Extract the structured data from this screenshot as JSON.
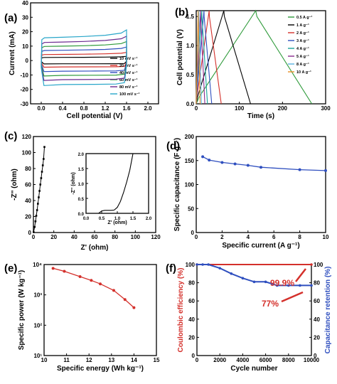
{
  "chart_data": [
    {
      "panel": "(a)",
      "type": "line",
      "xlabel": "Cell potential (V)",
      "ylabel": "Current (mA)",
      "xlim": [
        -0.2,
        2.2
      ],
      "ylim": [
        -30,
        40
      ],
      "xticks": [
        "0.0",
        "0.4",
        "0.8",
        "1.2",
        "1.6",
        "2.0"
      ],
      "yticks": [
        "-30",
        "-20",
        "-10",
        "0",
        "10",
        "20",
        "30",
        "40"
      ],
      "legend_position": "lower-right",
      "series": [
        {
          "name": "10 mV s⁻¹",
          "color": "#000000",
          "current_upper": 2.3,
          "current_lower": -2.3
        },
        {
          "name": "20 mV s⁻¹",
          "color": "#d4302b",
          "current_upper": 4.5,
          "current_lower": -4.5
        },
        {
          "name": "40 mV s⁻¹",
          "color": "#2f4fbf",
          "current_upper": 7.5,
          "current_lower": -7.5
        },
        {
          "name": "60 mV s⁻¹",
          "color": "#2e9a3a",
          "current_upper": 10.5,
          "current_lower": -10.5
        },
        {
          "name": "80 mV s⁻¹",
          "color": "#6b2a8f",
          "current_upper": 13.5,
          "current_lower": -13.5
        },
        {
          "name": "100 mV s⁻¹",
          "color": "#28a6c9",
          "current_upper": 17,
          "current_lower": -17
        }
      ],
      "x_range": [
        0,
        1.6
      ]
    },
    {
      "panel": "(b)",
      "type": "line",
      "xlabel": "Time (s)",
      "ylabel": "Cell potential (V)",
      "xlim": [
        0,
        300
      ],
      "ylim": [
        0,
        1.6
      ],
      "xticks": [
        "0",
        "100",
        "200",
        "300"
      ],
      "yticks": [
        "0.0",
        "0.5",
        "1.0",
        "1.5"
      ],
      "legend_position": "right",
      "series": [
        {
          "name": "0.5 A g⁻¹",
          "color": "#2e9a3a",
          "peak_time": 138,
          "end_time": 268
        },
        {
          "name": "1 A g⁻¹",
          "color": "#000000",
          "peak_time": 64,
          "end_time": 126
        },
        {
          "name": "2 A g⁻¹",
          "color": "#d4302b",
          "peak_time": 30,
          "end_time": 58
        },
        {
          "name": "3 A g⁻¹",
          "color": "#2f4fbf",
          "peak_time": 18,
          "end_time": 36
        },
        {
          "name": "4 A g⁻¹",
          "color": "#19a39a",
          "peak_time": 13,
          "end_time": 26
        },
        {
          "name": "5 A g⁻¹",
          "color": "#8a2a8f",
          "peak_time": 10,
          "end_time": 20
        },
        {
          "name": "8 A g⁻¹",
          "color": "#5ab4e0",
          "peak_time": 6,
          "end_time": 12
        },
        {
          "name": "10 A g⁻¹",
          "color": "#e8902a",
          "peak_time": 4.5,
          "end_time": 9
        }
      ]
    },
    {
      "panel": "(c)",
      "type": "scatter",
      "xlabel": "Z' (ohm)",
      "ylabel": "-Z'' (ohm)",
      "xlim": [
        0,
        120
      ],
      "ylim": [
        0,
        120
      ],
      "xticks": [
        "0",
        "20",
        "40",
        "60",
        "80",
        "100",
        "120"
      ],
      "yticks": [
        "0",
        "20",
        "40",
        "60",
        "80",
        "100",
        "120"
      ],
      "x": [
        0.2,
        1.2,
        2.0,
        2.8,
        3.6,
        4.4,
        5.2,
        6.0,
        6.8,
        7.6,
        8.4,
        9.2,
        10.0,
        10.8
      ],
      "y": [
        0.5,
        7,
        14,
        21,
        28,
        36,
        44,
        52,
        60,
        68,
        76,
        84,
        92,
        107
      ],
      "inset": {
        "xlabel": "Z' (ohm)",
        "ylabel": "-Z'' (ohm)",
        "xlim": [
          0,
          2.0
        ],
        "ylim": [
          0,
          2.0
        ],
        "xticks": [
          "0.0",
          "0.5",
          "1.0",
          "1.5",
          "2.0"
        ],
        "yticks": [
          "0.0",
          "0.5",
          "1.0",
          "1.5",
          "2.0"
        ],
        "x": [
          0.4,
          0.5,
          0.6,
          0.7,
          0.8,
          0.9,
          1.0,
          1.1,
          1.2,
          1.3,
          1.4,
          1.5
        ],
        "y": [
          0.0,
          0.08,
          0.1,
          0.1,
          0.1,
          0.11,
          0.2,
          0.4,
          0.7,
          1.05,
          1.45,
          2.0
        ]
      }
    },
    {
      "panel": "(d)",
      "type": "line",
      "xlabel": "Specific current (A g⁻¹)",
      "ylabel": "Specific capacitance (F g⁻¹)",
      "xlim": [
        0,
        10
      ],
      "ylim": [
        0,
        200
      ],
      "xticks": [
        "0",
        "2",
        "4",
        "6",
        "8",
        "10"
      ],
      "yticks": [
        "0",
        "50",
        "100",
        "150",
        "200"
      ],
      "color": "#2f4fbf",
      "x": [
        0.5,
        1,
        2,
        3,
        4,
        5,
        8,
        10
      ],
      "y": [
        158,
        151,
        146,
        143,
        140,
        136,
        131,
        129
      ]
    },
    {
      "panel": "(e)",
      "type": "line",
      "xlabel": "Specific energy (Wh kg⁻¹)",
      "ylabel": "Specific power (W kg⁻¹)",
      "yscale": "log",
      "xlim": [
        10,
        15
      ],
      "ylim": [
        10,
        10000
      ],
      "xticks": [
        "10",
        "11",
        "12",
        "13",
        "14",
        "15"
      ],
      "yticks": [
        "10¹",
        "10²",
        "10³",
        "10⁴"
      ],
      "color": "#d4302b",
      "x": [
        10.4,
        10.9,
        11.6,
        12.1,
        12.5,
        13.1,
        13.6,
        14.0
      ],
      "y": [
        7500,
        6000,
        4000,
        3000,
        2300,
        1400,
        700,
        380
      ]
    },
    {
      "panel": "(f)",
      "type": "line",
      "xlabel": "Cycle number",
      "ylabel": "Coulombic efficiency (%)",
      "ylabel_right": "Capacitance retention (%)",
      "xlim": [
        0,
        10000
      ],
      "ylim": [
        0,
        100
      ],
      "xticks": [
        "0",
        "2000",
        "4000",
        "6000",
        "8000",
        "10000"
      ],
      "yticks": [
        "0",
        "20",
        "40",
        "60",
        "80",
        "100"
      ],
      "series": [
        {
          "name": "Coulombic efficiency",
          "color": "#d4302b",
          "x": [
            0,
            10000
          ],
          "y": [
            100,
            100
          ]
        },
        {
          "name": "Capacitance retention",
          "color": "#2f4fbf",
          "x": [
            0,
            500,
            1000,
            2000,
            3000,
            4000,
            5000,
            6000,
            7000,
            8000,
            9000,
            10000
          ],
          "y": [
            100,
            100,
            100,
            96,
            90,
            85,
            81,
            81,
            77,
            77,
            77,
            77
          ]
        }
      ],
      "annotations": [
        "99.9%",
        "77%"
      ]
    }
  ]
}
